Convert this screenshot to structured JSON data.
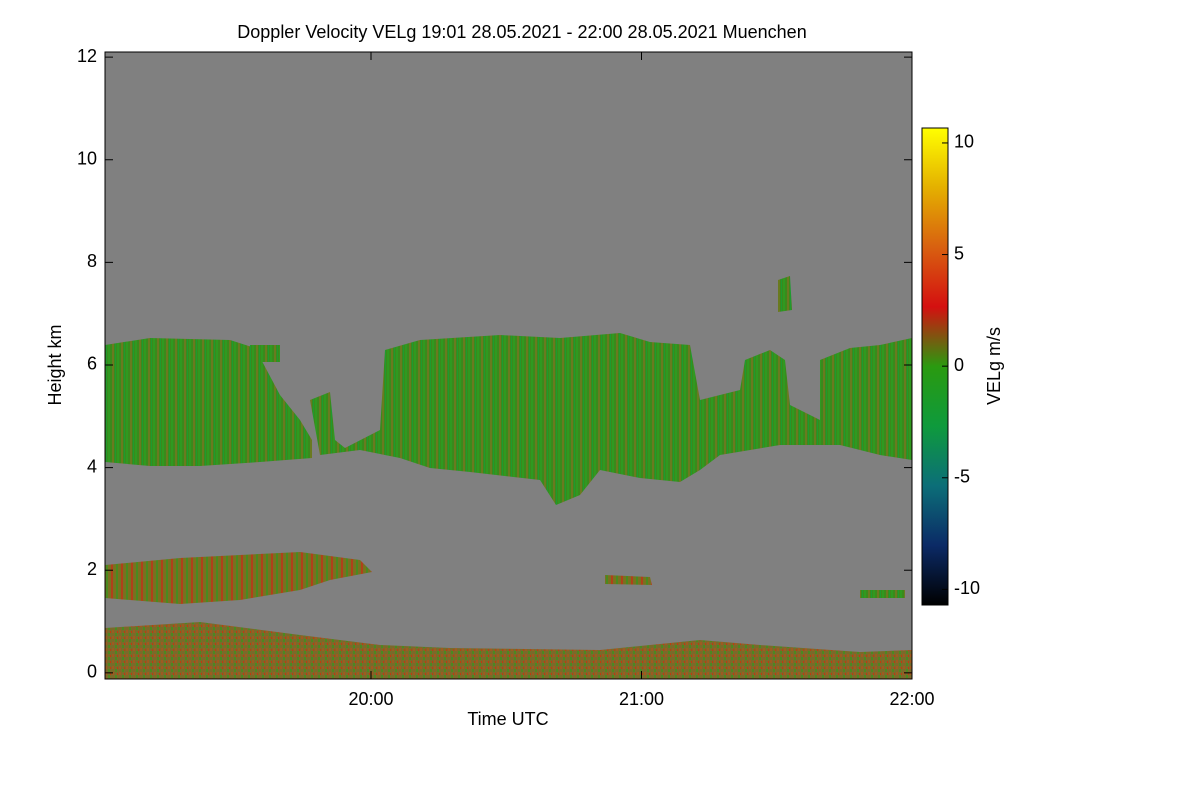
{
  "chart_data": {
    "type": "time-height",
    "title": "Doppler Velocity VELg   19:01 28.05.2021 - 22:00 28.05.2021 Muenchen",
    "xlabel": "Time UTC",
    "ylabel": "Height km",
    "xlim": [
      "19:01",
      "22:00"
    ],
    "xticks": [
      "20:00",
      "21:00",
      "22:00"
    ],
    "ylim": [
      -0.12,
      12.1
    ],
    "yticks": [
      0,
      2,
      4,
      6,
      8,
      10,
      12
    ],
    "colorbar": {
      "label": "VELg m/s",
      "lim": [
        -10.7,
        10.67
      ],
      "ticks": [
        -10,
        -5,
        0,
        5,
        10
      ],
      "colors": [
        "#000000",
        "#0b2a66",
        "#0c6e78",
        "#0e9a3c",
        "#2a9a10",
        "#d41010",
        "#d86010",
        "#e4b000",
        "#ffff00"
      ]
    },
    "background": "#808080"
  }
}
